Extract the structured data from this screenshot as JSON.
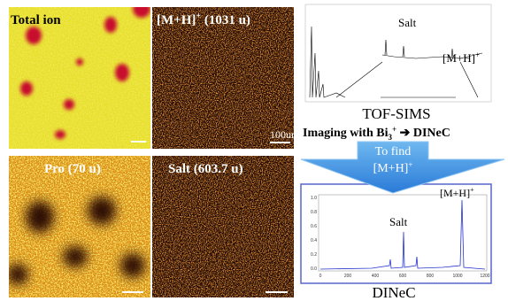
{
  "panels": [
    {
      "label": "Total ion"
    },
    {
      "label": "[M+H]",
      "sup": "+",
      "suffix": " (1031 u)",
      "scale": "100um"
    },
    {
      "label": "Pro (70 u)"
    },
    {
      "label": "Salt (603.7 u)"
    }
  ],
  "tof_sims": {
    "salt": "Salt",
    "ion": "[M+H]",
    "ion_sup": "+",
    "caption": "TOF-SIMS"
  },
  "imaging": {
    "text": "Imaging with Bi",
    "sub": "3",
    "sup": "+",
    "arrow": "➔",
    "target": "DINeC"
  },
  "arrow_box": {
    "line1": "To find",
    "line2": "[M+H]",
    "line2_sup": "+"
  },
  "dinec": {
    "salt": "Salt",
    "ion": "[M+H]",
    "ion_sup": "+",
    "xticks": [
      "0",
      "200",
      "400",
      "600",
      "800",
      "1000",
      "1200"
    ],
    "yticks": [
      "0.0",
      "0.2",
      "0.4",
      "0.6",
      "0.8",
      "1.0"
    ],
    "caption": "DINeC"
  }
}
